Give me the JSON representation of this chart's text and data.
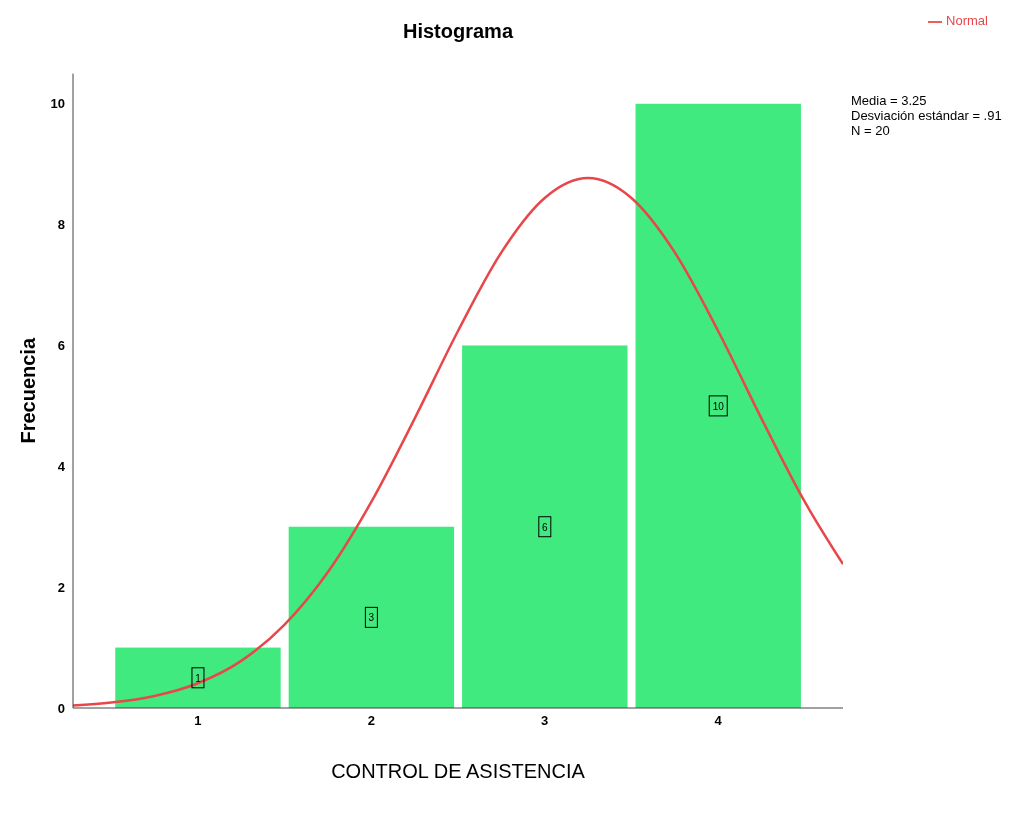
{
  "chart_data": {
    "type": "histogram",
    "title": "Histograma",
    "xlabel": "CONTROL DE ASISTENCIA",
    "ylabel": "Frecuencia",
    "bins": [
      0.5,
      1.5,
      2.5,
      3.5,
      4.5
    ],
    "values": [
      1,
      3,
      6,
      10
    ],
    "color": "#40ea7e",
    "value_labels": [
      "1",
      "3",
      "6",
      "10"
    ],
    "xlim": [
      0.28,
      4.72
    ],
    "xticks": [
      1,
      2,
      3,
      4
    ],
    "ylim": [
      0,
      10.5
    ],
    "yticks": [
      0,
      2,
      4,
      6,
      8,
      10
    ],
    "grid": false,
    "legend": "top right",
    "series": [
      {
        "type": "line",
        "name": "Normal",
        "color": "#e8474a",
        "marker": "none",
        "x": [
          0.28,
          0.5,
          0.75,
          1.0,
          1.25,
          1.5,
          1.75,
          2.0,
          2.25,
          2.5,
          2.75,
          3.0,
          3.25,
          3.5,
          3.75,
          4.0,
          4.25,
          4.5,
          4.72
        ],
        "values": [
          0.04,
          0.09,
          0.2,
          0.41,
          0.78,
          1.38,
          2.25,
          3.41,
          4.79,
          6.24,
          7.54,
          8.44,
          8.77,
          8.44,
          7.54,
          6.24,
          4.79,
          3.41,
          2.38
        ]
      }
    ],
    "annotations": [
      "Media = 3.25",
      "Desviación estándar = .91",
      "N = 20"
    ]
  }
}
